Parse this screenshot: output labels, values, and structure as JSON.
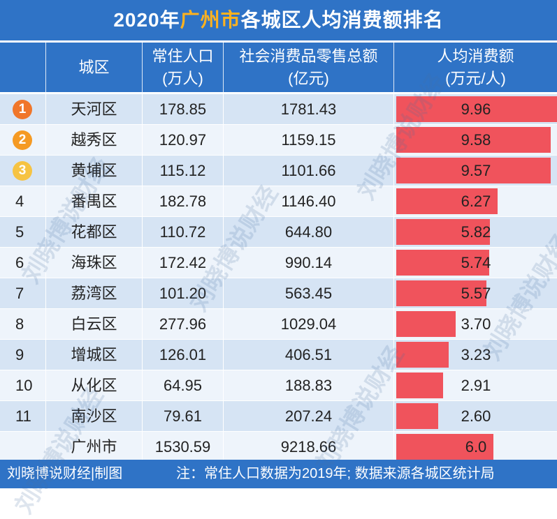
{
  "title": {
    "year": "2020年",
    "city": "广州市",
    "rest": "各城区人均消费额排名"
  },
  "header": {
    "district": "城区",
    "population": [
      "常住人口",
      "(万人)"
    ],
    "sales": [
      "社会消费品零售总额",
      "(亿元)"
    ],
    "per_capita": [
      "人均消费额",
      "(万元/人)"
    ]
  },
  "medal_colors": [
    "#f0762a",
    "#f59a23",
    "#f6c343"
  ],
  "rows": [
    {
      "rank": "1",
      "name": "天河区",
      "population": "178.85",
      "sales": "1781.43",
      "per_capita": "9.96"
    },
    {
      "rank": "2",
      "name": "越秀区",
      "population": "120.97",
      "sales": "1159.15",
      "per_capita": "9.58"
    },
    {
      "rank": "3",
      "name": "黄埔区",
      "population": "115.12",
      "sales": "1101.66",
      "per_capita": "9.57"
    },
    {
      "rank": "4",
      "name": "番禺区",
      "population": "182.78",
      "sales": "1146.40",
      "per_capita": "6.27"
    },
    {
      "rank": "5",
      "name": "花都区",
      "population": "110.72",
      "sales": "644.80",
      "per_capita": "5.82"
    },
    {
      "rank": "6",
      "name": "海珠区",
      "population": "172.42",
      "sales": "990.14",
      "per_capita": "5.74"
    },
    {
      "rank": "7",
      "name": "荔湾区",
      "population": "101.20",
      "sales": "563.45",
      "per_capita": "5.57"
    },
    {
      "rank": "8",
      "name": "白云区",
      "population": "277.96",
      "sales": "1029.04",
      "per_capita": "3.70"
    },
    {
      "rank": "9",
      "name": "增城区",
      "population": "126.01",
      "sales": "406.51",
      "per_capita": "3.23"
    },
    {
      "rank": "10",
      "name": "从化区",
      "population": "64.95",
      "sales": "188.83",
      "per_capita": "2.91"
    },
    {
      "rank": "11",
      "name": "南沙区",
      "population": "79.61",
      "sales": "207.24",
      "per_capita": "2.60"
    },
    {
      "rank": "",
      "name": "广州市",
      "population": "1530.59",
      "sales": "9218.66",
      "per_capita": "6.0"
    }
  ],
  "footer": {
    "credit": "刘晓博说财经|制图",
    "note": "注：常住人口数据为2019年; 数据来源各城区统计局"
  },
  "watermark": "刘晓博说财经",
  "chart_data": {
    "type": "table",
    "title": "2020年广州市各城区人均消费额排名",
    "columns": [
      "城区",
      "常住人口(万人)",
      "社会消费品零售总额(亿元)",
      "人均消费额(万元/人)"
    ],
    "categories": [
      "天河区",
      "越秀区",
      "黄埔区",
      "番禺区",
      "花都区",
      "海珠区",
      "荔湾区",
      "白云区",
      "增城区",
      "从化区",
      "南沙区",
      "广州市"
    ],
    "series": [
      {
        "name": "常住人口(万人)",
        "values": [
          178.85,
          120.97,
          115.12,
          182.78,
          110.72,
          172.42,
          101.2,
          277.96,
          126.01,
          64.95,
          79.61,
          1530.59
        ]
      },
      {
        "name": "社会消费品零售总额(亿元)",
        "values": [
          1781.43,
          1159.15,
          1101.66,
          1146.4,
          644.8,
          990.14,
          563.45,
          1029.04,
          406.51,
          188.83,
          207.24,
          9218.66
        ]
      },
      {
        "name": "人均消费额(万元/人)",
        "values": [
          9.96,
          9.58,
          9.57,
          6.27,
          5.82,
          5.74,
          5.57,
          3.7,
          3.23,
          2.91,
          2.6,
          6.0
        ]
      }
    ],
    "bar_color": "#f0535c"
  }
}
